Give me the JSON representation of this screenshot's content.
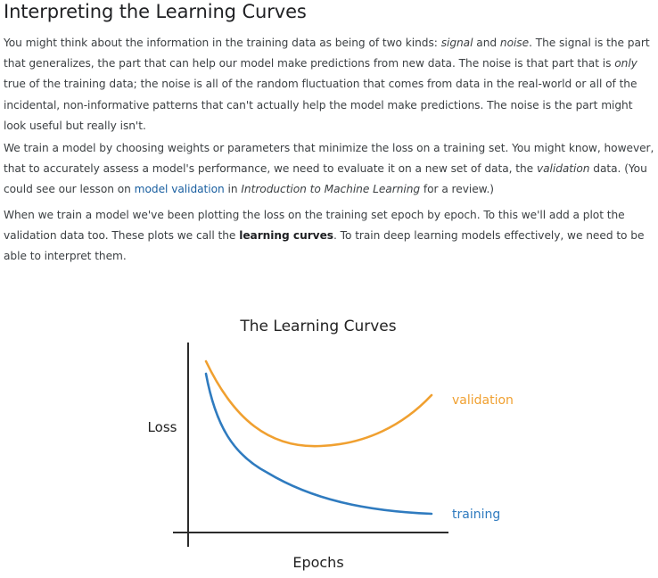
{
  "heading": "Interpreting the Learning Curves",
  "p1": {
    "t1": "You might think about the information in the training data as being of two kinds: ",
    "em1": "signal",
    "t2": " and ",
    "em2": "noise",
    "t3": ". The signal is the part that generalizes, the part that can help our model make predictions from new data. The noise is that part that is ",
    "em3": "only",
    "t4": " true of the training data; the noise is all of the random fluctuation that comes from data in the real-world or all of the incidental, non-informative patterns that can't actually help the model make predictions. The noise is the part might look useful but really isn't."
  },
  "p2": {
    "t1": "We train a model by choosing weights or parameters that minimize the loss on a training set. You might know, however, that to accurately assess a model's performance, we need to evaluate it on a new set of data, the ",
    "em1": "validation",
    "t2": " data. (You could see our lesson on ",
    "link": "model validation",
    "t3": " in ",
    "em2": "Introduction to Machine Learning",
    "t4": " for a review.)"
  },
  "p3": {
    "t1": "When we train a model we've been plotting the loss on the training set epoch by epoch. To this we'll add a plot the validation data too. These plots we call the ",
    "b1": "learning curves",
    "t2": ". To train deep learning models effectively, we need to be able to interpret them."
  },
  "chart_data": {
    "type": "line",
    "title": "The Learning Curves",
    "xlabel": "Epochs",
    "ylabel": "Loss",
    "series": [
      {
        "name": "validation",
        "color": "#f0a030"
      },
      {
        "name": "training",
        "color": "#2f7bbf"
      }
    ],
    "axis_color": "#2b2b2b"
  }
}
